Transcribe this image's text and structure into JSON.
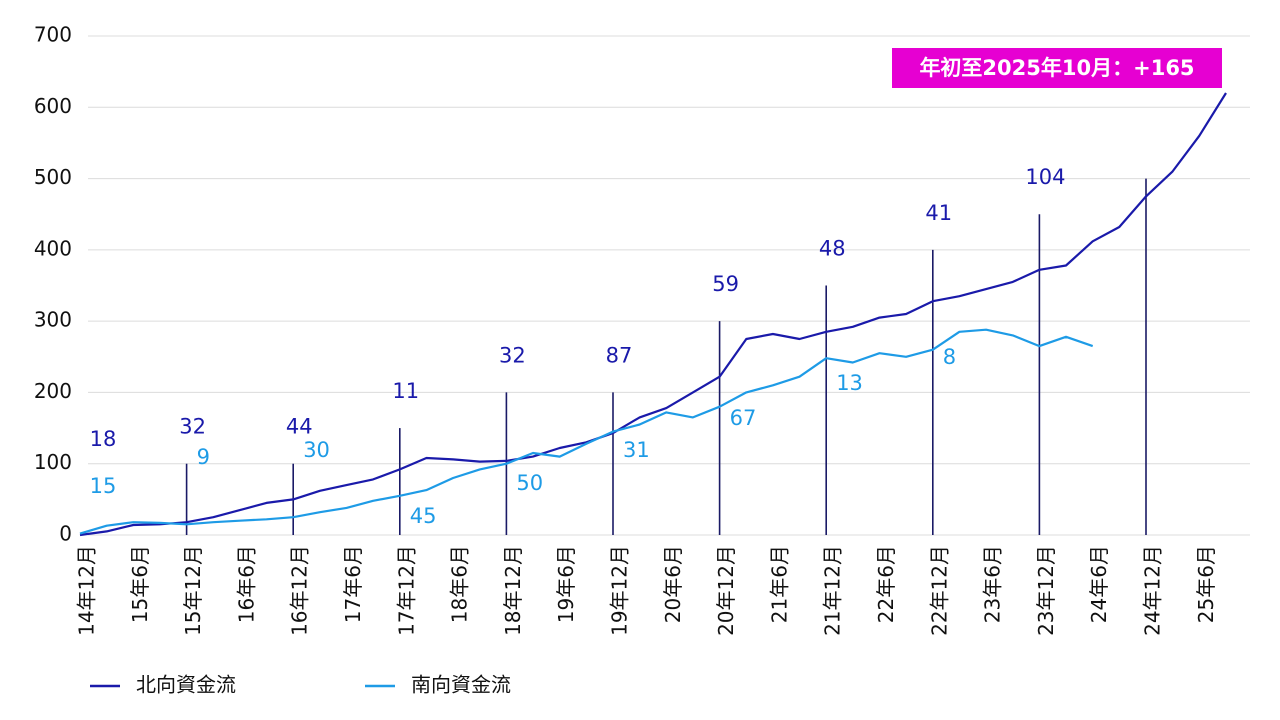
{
  "chart_data": {
    "type": "line",
    "categories": [
      "14年12月",
      null,
      "15年6月",
      null,
      "15年12月",
      null,
      "16年6月",
      null,
      "16年12月",
      null,
      "17年6月",
      null,
      "17年12月",
      null,
      "18年6月",
      null,
      "18年12月",
      null,
      "19年6月",
      null,
      "19年12月",
      null,
      "20年6月",
      null,
      "20年12月",
      null,
      "21年6月",
      null,
      "21年12月",
      null,
      "22年6月",
      null,
      "22年12月",
      null,
      "23年6月",
      null,
      "23年12月",
      null,
      "24年6月",
      null,
      "24年12月",
      null,
      "25年6月",
      null
    ],
    "series": [
      {
        "name": "北向資金流",
        "color": "#1a1aaa",
        "values": [
          0,
          5,
          14,
          15,
          18,
          25,
          35,
          45,
          50,
          62,
          70,
          78,
          92,
          108,
          106,
          103,
          104,
          110,
          122,
          130,
          143,
          165,
          178,
          200,
          222,
          275,
          282,
          275,
          285,
          292,
          305,
          310,
          328,
          335,
          345,
          355,
          372,
          378,
          412,
          432,
          475,
          510,
          560,
          620
        ]
      },
      {
        "name": "南向資金流",
        "color": "#1e9be6",
        "values": [
          2,
          13,
          18,
          17,
          15,
          18,
          20,
          22,
          25,
          32,
          38,
          48,
          55,
          63,
          80,
          92,
          100,
          115,
          110,
          128,
          145,
          155,
          172,
          165,
          180,
          200,
          210,
          222,
          248,
          242,
          255,
          250,
          260,
          285,
          288,
          280,
          265,
          278,
          265,
          null,
          null,
          null,
          null,
          null
        ]
      }
    ],
    "ylim": [
      0,
      700
    ],
    "yticks": [
      0,
      100,
      200,
      300,
      400,
      500,
      600,
      700
    ],
    "grid": true,
    "year_marks": [
      {
        "x": "14年12月",
        "north": 18,
        "south": 15
      },
      {
        "x": "15年12月",
        "line": 100,
        "north": 32,
        "south": 9
      },
      {
        "x": "16年12月",
        "line": 100,
        "north": 44,
        "south": 30
      },
      {
        "x": "17年12月",
        "line": 150,
        "north": 11,
        "south": 45
      },
      {
        "x": "18年12月",
        "line": 200,
        "north": 32,
        "south": 50
      },
      {
        "x": "19年12月",
        "line": 200,
        "north": 87,
        "south": 31
      },
      {
        "x": "20年12月",
        "line": 300,
        "north": 59,
        "south": 67
      },
      {
        "x": "21年12月",
        "line": 350,
        "north": 48,
        "south": 13
      },
      {
        "x": "22年12月",
        "line": 400,
        "north": 41,
        "south": 8
      },
      {
        "x": "23年12月",
        "line": 450,
        "north": 104
      },
      {
        "x": "24年12月",
        "line": 500
      }
    ],
    "highlight": "年初至2025年10月：+165"
  }
}
